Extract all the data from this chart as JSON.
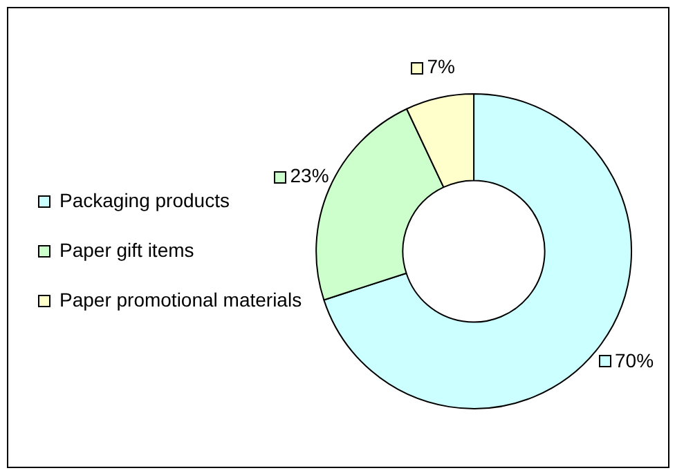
{
  "chart_data": {
    "type": "donut",
    "categories": [
      "Packaging products",
      "Paper gift items",
      "Paper promotional materials"
    ],
    "values": [
      70,
      23,
      7
    ],
    "colors": [
      "#ccffff",
      "#ccffcc",
      "#ffffcc"
    ],
    "value_labels": [
      "70%",
      "23%",
      "7%"
    ],
    "legend": "left"
  }
}
